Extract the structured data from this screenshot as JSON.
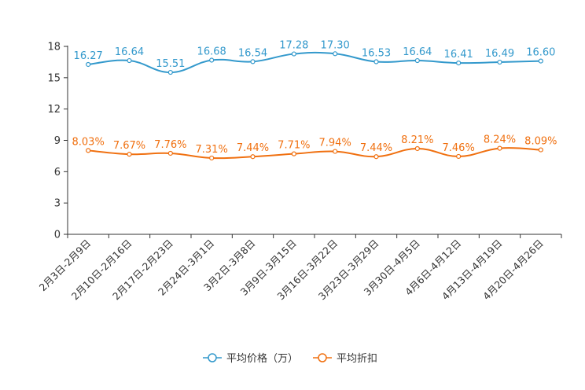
{
  "chart_data": {
    "type": "line",
    "categories": [
      "2月3日-2月9日",
      "2月10日-2月16日",
      "2月17日-2月23日",
      "2月24日-3月1日",
      "3月2日-3月8日",
      "3月9日-3月15日",
      "3月16日-3月22日",
      "3月23日-3月29日",
      "3月30日-4月5日",
      "4月6日-4月12日",
      "4月13日-4月19日",
      "4月20日-4月26日"
    ],
    "series": [
      {
        "name": "平均价格（万）",
        "color": "#3399cc",
        "values": [
          16.27,
          16.64,
          15.51,
          16.68,
          16.54,
          17.28,
          17.3,
          16.53,
          16.64,
          16.41,
          16.49,
          16.6
        ],
        "labels": [
          "16.27",
          "16.64",
          "15.51",
          "16.68",
          "16.54",
          "17.28",
          "17.30",
          "16.53",
          "16.64",
          "16.41",
          "16.49",
          "16.60"
        ]
      },
      {
        "name": "平均折扣",
        "color": "#f07010",
        "values": [
          8.03,
          7.67,
          7.76,
          7.31,
          7.44,
          7.71,
          7.94,
          7.44,
          8.21,
          7.46,
          8.24,
          8.09
        ],
        "labels": [
          "8.03%",
          "7.67%",
          "7.76%",
          "7.31%",
          "7.44%",
          "7.71%",
          "7.94%",
          "7.44%",
          "8.21%",
          "7.46%",
          "8.24%",
          "8.09%"
        ]
      }
    ],
    "yticks": [
      "0",
      "3",
      "6",
      "9",
      "12",
      "15",
      "18"
    ],
    "ylim": [
      0,
      18
    ],
    "legend": "bottom",
    "title": "",
    "xlabel": "",
    "ylabel": ""
  }
}
